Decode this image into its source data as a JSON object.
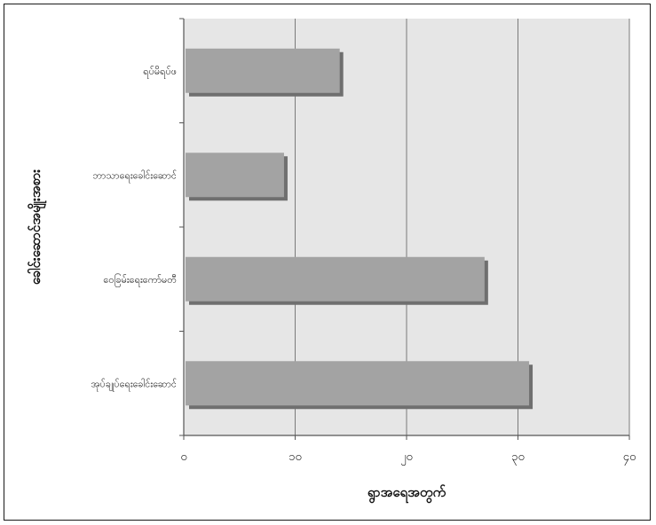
{
  "chart_data": {
    "type": "bar",
    "orientation": "horizontal",
    "categories": [
      "ရပ်မိရပ်ဖ",
      "ဘာသာရေးခေါင်းဆောင်",
      "ဝေခြမ်းရေးကော်မတီ",
      "အုပ်ချုပ်ရေးခေါင်းဆောင်"
    ],
    "values": [
      14,
      9,
      27,
      31
    ],
    "xlabel": "ရွာအရေအတွက်",
    "ylabel": "ခေါင်းဆောင်အမျိုးအစား",
    "xlim": [
      0,
      40
    ],
    "x_ticks": [
      0,
      10,
      20,
      30,
      40
    ],
    "x_tick_labels": [
      "၀",
      "၁၀",
      "၂၀",
      "၃၀",
      "၄၀"
    ],
    "grid": "vertical",
    "legend": "none",
    "colors": {
      "bar": "#a3a3a3",
      "bar_shadow": "#6f6f6f",
      "plot_background": "#e6e6e6",
      "gridline": "#7a7a7a"
    }
  }
}
